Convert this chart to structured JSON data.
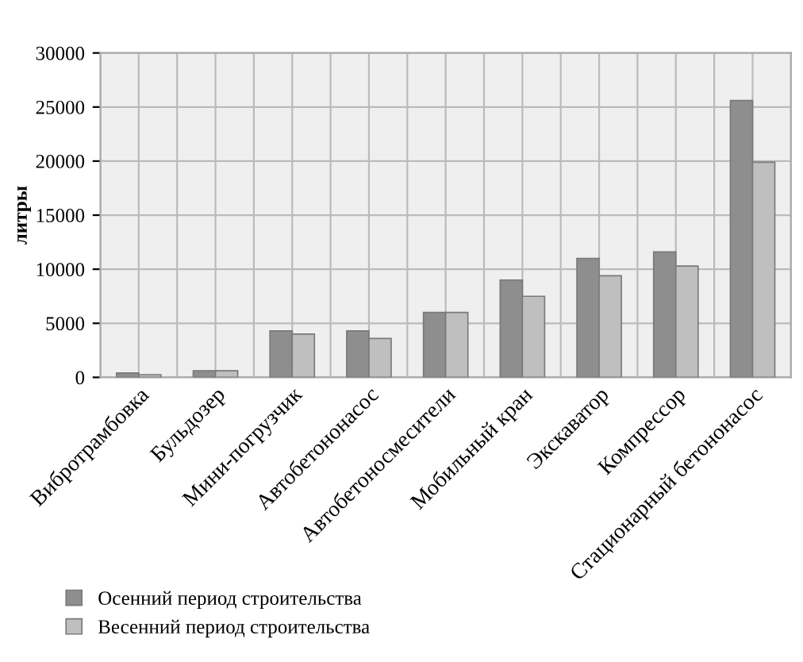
{
  "chart_data": {
    "type": "bar",
    "ylabel": "литры",
    "categories": [
      "Вибротрамбовка",
      "Бульдозер",
      "Мини-погрузчик",
      "Автобетононасос",
      "Автобетоносмесители",
      "Мобильный кран",
      "Экскаватор",
      "Компрессор",
      "Стационарный бетононасос"
    ],
    "series": [
      {
        "name": "Осенний период строительства",
        "color": "#8e8e8e",
        "values": [
          400,
          600,
          4300,
          4300,
          6000,
          9000,
          11000,
          11600,
          25600
        ]
      },
      {
        "name": "Весенний период строительства",
        "color": "#bfbfbf",
        "values": [
          250,
          600,
          4000,
          3600,
          6000,
          7500,
          9400,
          10300,
          19900
        ]
      }
    ],
    "ylim": [
      0,
      30000
    ],
    "yticks": [
      0,
      5000,
      10000,
      15000,
      20000,
      25000,
      30000
    ],
    "grid": true,
    "legend": "bottom left"
  }
}
